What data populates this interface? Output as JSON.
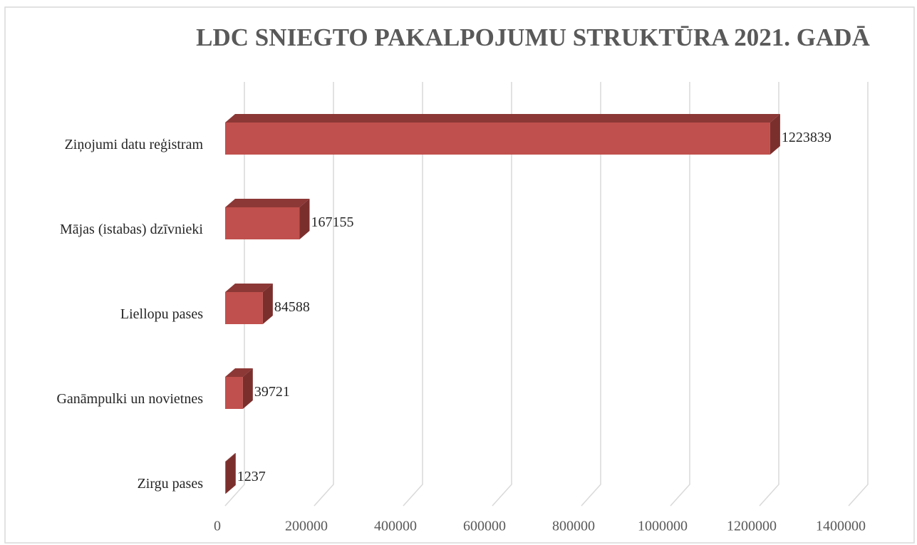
{
  "chart_data": {
    "type": "bar3d_horizontal",
    "title": "LDC SNIEGTO PAKALPOJUMU STRUKTŪRA 2021. GADĀ",
    "categories": [
      "Ziņojumi datu reģistram",
      "Mājas (istabas) dzīvnieki",
      "Liellopu pases",
      "Ganāmpulki un novietnes",
      "Zirgu pases"
    ],
    "values": [
      1223839,
      167155,
      84588,
      39721,
      1237
    ],
    "color": "#c0504d",
    "xlim": [
      0,
      1400000
    ],
    "xticks": [
      0,
      200000,
      400000,
      600000,
      800000,
      1000000,
      1200000,
      1400000
    ],
    "grid": true
  }
}
